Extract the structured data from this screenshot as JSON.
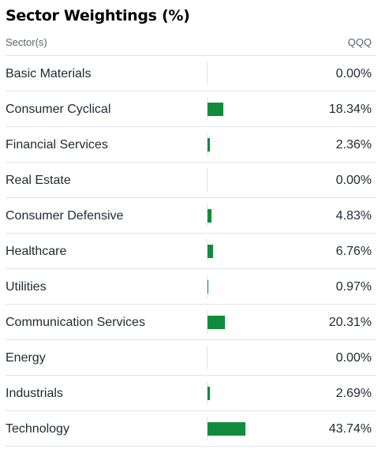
{
  "title": "Sector Weightings (%)",
  "header": {
    "sector_label": "Sector(s)",
    "fund_label": "QQQ"
  },
  "colors": {
    "bar": "#128c3c",
    "divider": "#e0e4e9",
    "header_text": "#5b636a"
  },
  "bar_scale_max_percent": 100,
  "rows": [
    {
      "sector": "Basic Materials",
      "value": "0.00%",
      "percent": 0.0
    },
    {
      "sector": "Consumer Cyclical",
      "value": "18.34%",
      "percent": 18.34
    },
    {
      "sector": "Financial Services",
      "value": "2.36%",
      "percent": 2.36
    },
    {
      "sector": "Real Estate",
      "value": "0.00%",
      "percent": 0.0
    },
    {
      "sector": "Consumer Defensive",
      "value": "4.83%",
      "percent": 4.83
    },
    {
      "sector": "Healthcare",
      "value": "6.76%",
      "percent": 6.76
    },
    {
      "sector": "Utilities",
      "value": "0.97%",
      "percent": 0.97
    },
    {
      "sector": "Communication Services",
      "value": "20.31%",
      "percent": 20.31
    },
    {
      "sector": "Energy",
      "value": "0.00%",
      "percent": 0.0
    },
    {
      "sector": "Industrials",
      "value": "2.69%",
      "percent": 2.69
    },
    {
      "sector": "Technology",
      "value": "43.74%",
      "percent": 43.74
    }
  ]
}
